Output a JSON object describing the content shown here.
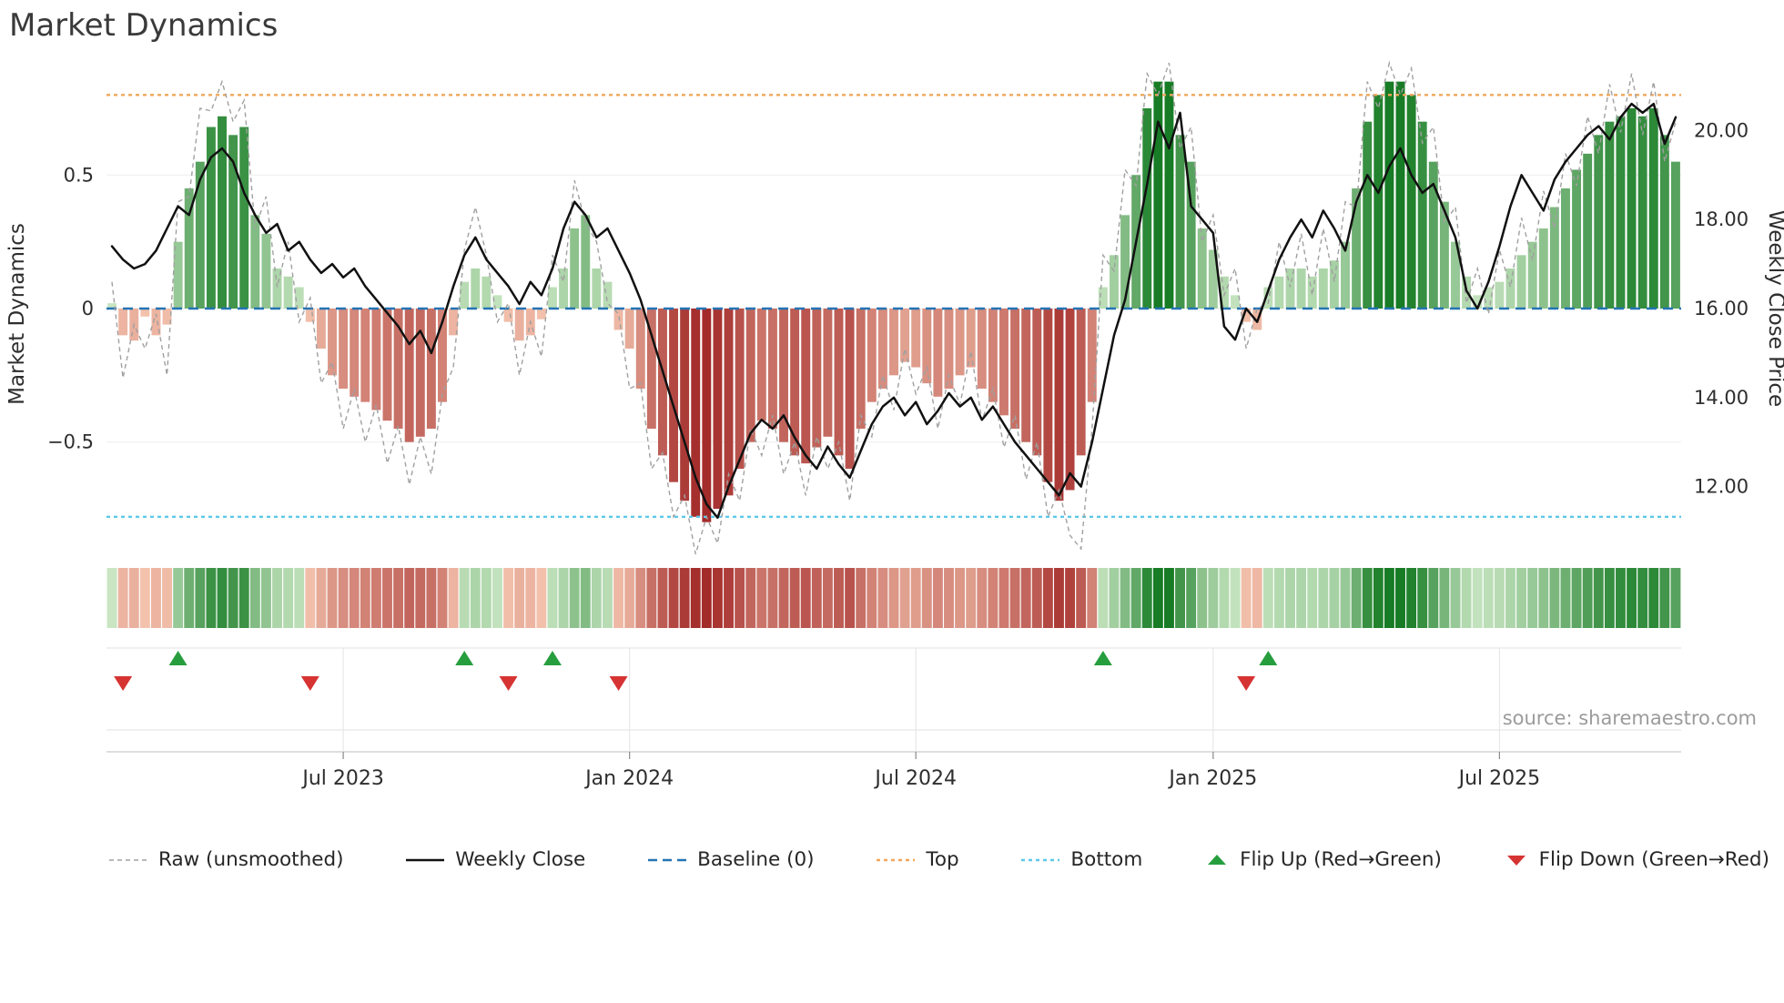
{
  "title": "Market Dynamics",
  "source": "source: sharemaestro.com",
  "axes": {
    "left_label": "Market Dynamics",
    "right_label": "Weekly Close Price",
    "left_ticks": [
      {
        "v": 0.5,
        "label": "0.5"
      },
      {
        "v": 0.0,
        "label": "0"
      },
      {
        "v": -0.5,
        "label": "−0.5"
      }
    ],
    "right_ticks": [
      {
        "v": 20,
        "label": "20.00"
      },
      {
        "v": 18,
        "label": "18.00"
      },
      {
        "v": 16,
        "label": "16.00"
      },
      {
        "v": 14,
        "label": "14.00"
      },
      {
        "v": 12,
        "label": "12.00"
      }
    ],
    "x_ticks": [
      {
        "week": 21,
        "label": "Jul 2023"
      },
      {
        "week": 47,
        "label": "Jan 2024"
      },
      {
        "week": 73,
        "label": "Jul 2024"
      },
      {
        "week": 100,
        "label": "Jan 2025"
      },
      {
        "week": 126,
        "label": "Jul 2025"
      }
    ]
  },
  "legend": [
    {
      "label": "Raw (unsmoothed)",
      "icon": "dashed-gray-line"
    },
    {
      "label": "Weekly Close",
      "icon": "solid-black-line"
    },
    {
      "label": "Baseline (0)",
      "icon": "dashed-blue-line"
    },
    {
      "label": "Top",
      "icon": "dotted-orange-line"
    },
    {
      "label": "Bottom",
      "icon": "dotted-cyan-line"
    },
    {
      "label": "Flip Up (Red→Green)",
      "icon": "green-up-triangle"
    },
    {
      "label": "Flip Down (Green→Red)",
      "icon": "red-down-triangle"
    }
  ],
  "colors": {
    "bar_green_light": "#cde8c6",
    "bar_green_dark": "#177c25",
    "bar_red_light": "#f6c8b2",
    "bar_red_dark": "#9e2121",
    "raw_line": "#a0a0a0",
    "close_line": "#111111",
    "baseline": "#2474b5",
    "top": "#f2a65a",
    "bottom": "#5ec8ea",
    "flip_up": "#279e3e",
    "flip_down": "#d63333",
    "grid": "#efefef",
    "panel_line": "#e0e0e0",
    "axis_line": "#c9c9c9"
  },
  "chart_data": {
    "type": "bar+line",
    "x_unit": "week",
    "n_weeks": 143,
    "x_range_note": "weekly points from Feb 2023 to Oct 2025",
    "ylim": [
      -0.9,
      0.9
    ],
    "price_ylim": [
      10.6,
      21.4
    ],
    "reference_lines": {
      "baseline": 0,
      "top": 0.8,
      "bottom": -0.78
    },
    "flip_up_weeks": [
      6,
      32,
      40,
      90,
      105
    ],
    "flip_down_weeks": [
      1,
      18,
      36,
      46,
      103
    ],
    "heatmap_source": "bars",
    "bars": {
      "name": "Market Dynamics oscillator",
      "axis": "left",
      "values": [
        0.02,
        -0.1,
        -0.12,
        -0.03,
        -0.1,
        -0.06,
        0.25,
        0.45,
        0.55,
        0.68,
        0.72,
        0.65,
        0.68,
        0.35,
        0.28,
        0.15,
        0.12,
        0.08,
        -0.05,
        -0.15,
        -0.25,
        -0.3,
        -0.33,
        -0.35,
        -0.38,
        -0.42,
        -0.45,
        -0.5,
        -0.48,
        -0.45,
        -0.35,
        -0.1,
        0.1,
        0.15,
        0.12,
        0.05,
        -0.05,
        -0.12,
        -0.1,
        -0.04,
        0.08,
        0.15,
        0.3,
        0.35,
        0.15,
        0.1,
        -0.08,
        -0.15,
        -0.3,
        -0.45,
        -0.55,
        -0.65,
        -0.72,
        -0.78,
        -0.8,
        -0.75,
        -0.7,
        -0.6,
        -0.5,
        -0.42,
        -0.45,
        -0.5,
        -0.55,
        -0.58,
        -0.52,
        -0.48,
        -0.55,
        -0.6,
        -0.45,
        -0.35,
        -0.3,
        -0.25,
        -0.2,
        -0.22,
        -0.28,
        -0.33,
        -0.3,
        -0.25,
        -0.22,
        -0.3,
        -0.35,
        -0.4,
        -0.45,
        -0.5,
        -0.55,
        -0.65,
        -0.72,
        -0.68,
        -0.55,
        -0.35,
        0.08,
        0.2,
        0.35,
        0.5,
        0.75,
        0.85,
        0.85,
        0.65,
        0.55,
        0.3,
        0.22,
        0.12,
        0.05,
        -0.05,
        -0.08,
        0.08,
        0.12,
        0.15,
        0.15,
        0.12,
        0.15,
        0.18,
        0.25,
        0.45,
        0.7,
        0.8,
        0.85,
        0.85,
        0.8,
        0.7,
        0.55,
        0.4,
        0.25,
        0.12,
        0.05,
        0.08,
        0.1,
        0.15,
        0.2,
        0.25,
        0.3,
        0.38,
        0.45,
        0.52,
        0.58,
        0.65,
        0.7,
        0.72,
        0.75,
        0.72,
        0.75,
        0.65,
        0.55
      ]
    },
    "lines": [
      {
        "name": "Raw (unsmoothed)",
        "axis": "left",
        "values": [
          0.1,
          -0.26,
          -0.06,
          -0.15,
          -0.02,
          -0.25,
          0.4,
          0.42,
          0.75,
          0.74,
          0.85,
          0.7,
          0.78,
          0.3,
          0.42,
          0.08,
          0.25,
          -0.05,
          0.04,
          -0.28,
          -0.2,
          -0.45,
          -0.3,
          -0.5,
          -0.36,
          -0.58,
          -0.44,
          -0.66,
          -0.48,
          -0.62,
          -0.32,
          -0.22,
          0.22,
          0.38,
          0.2,
          -0.05,
          0.02,
          -0.25,
          -0.05,
          -0.18,
          0.2,
          0.1,
          0.48,
          0.32,
          0.25,
          0.02,
          -0.02,
          -0.3,
          -0.28,
          -0.6,
          -0.54,
          -0.78,
          -0.7,
          -0.92,
          -0.78,
          -0.88,
          -0.62,
          -0.72,
          -0.45,
          -0.55,
          -0.4,
          -0.62,
          -0.5,
          -0.7,
          -0.48,
          -0.6,
          -0.5,
          -0.72,
          -0.4,
          -0.48,
          -0.25,
          -0.38,
          -0.15,
          -0.32,
          -0.22,
          -0.45,
          -0.25,
          -0.36,
          -0.16,
          -0.42,
          -0.3,
          -0.52,
          -0.4,
          -0.64,
          -0.5,
          -0.78,
          -0.68,
          -0.85,
          -0.9,
          -0.45,
          0.2,
          0.14,
          0.52,
          0.46,
          0.88,
          0.8,
          0.92,
          0.6,
          0.68,
          0.25,
          0.35,
          0.05,
          0.15,
          -0.15,
          0.0,
          0.02,
          0.25,
          0.08,
          0.28,
          0.05,
          0.3,
          0.1,
          0.4,
          0.38,
          0.85,
          0.75,
          0.92,
          0.8,
          0.9,
          0.62,
          0.68,
          0.32,
          0.38,
          0.02,
          0.15,
          -0.02,
          0.22,
          0.08,
          0.34,
          0.18,
          0.44,
          0.3,
          0.58,
          0.46,
          0.72,
          0.58,
          0.84,
          0.66,
          0.88,
          0.65,
          0.85,
          0.55,
          0.7
        ]
      },
      {
        "name": "Weekly Close",
        "axis": "right",
        "values": [
          17.4,
          17.1,
          16.9,
          17.0,
          17.3,
          17.8,
          18.3,
          18.1,
          18.9,
          19.4,
          19.6,
          19.3,
          18.6,
          18.1,
          17.7,
          17.9,
          17.3,
          17.5,
          17.1,
          16.8,
          17.0,
          16.7,
          16.9,
          16.5,
          16.2,
          15.9,
          15.6,
          15.2,
          15.5,
          15.0,
          15.7,
          16.5,
          17.2,
          17.6,
          17.1,
          16.8,
          16.5,
          16.1,
          16.6,
          16.3,
          16.9,
          17.8,
          18.4,
          18.1,
          17.6,
          17.8,
          17.3,
          16.8,
          16.2,
          15.4,
          14.6,
          13.8,
          13.0,
          12.2,
          11.6,
          11.3,
          12.0,
          12.6,
          13.2,
          13.5,
          13.3,
          13.6,
          13.1,
          12.7,
          12.4,
          12.9,
          12.5,
          12.2,
          12.8,
          13.4,
          13.8,
          14.0,
          13.6,
          13.9,
          13.4,
          13.7,
          14.1,
          13.8,
          14.0,
          13.5,
          13.8,
          13.4,
          13.0,
          12.7,
          12.4,
          12.1,
          11.8,
          12.3,
          12.0,
          13.0,
          14.2,
          15.4,
          16.2,
          17.5,
          18.8,
          20.2,
          19.6,
          20.4,
          18.3,
          18.0,
          17.7,
          15.6,
          15.3,
          16.0,
          15.7,
          16.4,
          17.1,
          17.6,
          18.0,
          17.6,
          18.2,
          17.8,
          17.3,
          18.4,
          19.0,
          18.6,
          19.2,
          19.6,
          19.0,
          18.6,
          18.8,
          18.2,
          17.6,
          16.4,
          16.0,
          16.6,
          17.4,
          18.3,
          19.0,
          18.6,
          18.2,
          18.9,
          19.3,
          19.6,
          19.9,
          20.1,
          19.8,
          20.3,
          20.6,
          20.4,
          20.6,
          19.7,
          20.3
        ]
      }
    ]
  }
}
